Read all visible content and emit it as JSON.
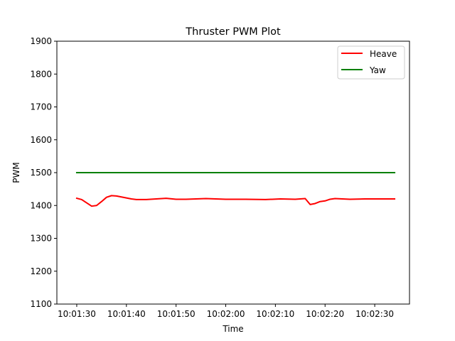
{
  "chart_data": {
    "type": "line",
    "title": "Thruster PWM Plot",
    "xlabel": "Time",
    "ylabel": "PWM",
    "xlim": [
      "10:01:26",
      "10:02:37"
    ],
    "ylim": [
      1100,
      1900
    ],
    "x_ticks": [
      "10:01:30",
      "10:01:40",
      "10:01:50",
      "10:02:00",
      "10:02:10",
      "10:02:20",
      "10:02:30"
    ],
    "y_ticks": [
      1100,
      1200,
      1300,
      1400,
      1500,
      1600,
      1700,
      1800,
      1900
    ],
    "grid": false,
    "legend": "top-right",
    "series": [
      {
        "name": "Heave",
        "color": "#ff0000",
        "x": [
          "10:01:30",
          "10:01:31",
          "10:01:32",
          "10:01:33",
          "10:01:34",
          "10:01:35",
          "10:01:36",
          "10:01:37",
          "10:01:38",
          "10:01:39",
          "10:01:40",
          "10:01:41",
          "10:01:42",
          "10:01:44",
          "10:01:46",
          "10:01:48",
          "10:01:50",
          "10:01:52",
          "10:01:54",
          "10:01:56",
          "10:01:58",
          "10:02:00",
          "10:02:04",
          "10:02:08",
          "10:02:11",
          "10:02:14",
          "10:02:16",
          "10:02:17",
          "10:02:18",
          "10:02:19",
          "10:02:20",
          "10:02:21",
          "10:02:22",
          "10:02:25",
          "10:02:28",
          "10:02:31",
          "10:02:34"
        ],
        "y": [
          1422,
          1418,
          1408,
          1398,
          1400,
          1412,
          1425,
          1430,
          1429,
          1426,
          1423,
          1420,
          1418,
          1418,
          1420,
          1422,
          1419,
          1419,
          1420,
          1421,
          1420,
          1419,
          1419,
          1418,
          1420,
          1419,
          1421,
          1403,
          1406,
          1412,
          1414,
          1419,
          1421,
          1419,
          1420,
          1420,
          1420
        ]
      },
      {
        "name": "Yaw",
        "color": "#008000",
        "x": [
          "10:01:30",
          "10:02:34"
        ],
        "y": [
          1500,
          1500
        ]
      }
    ]
  }
}
